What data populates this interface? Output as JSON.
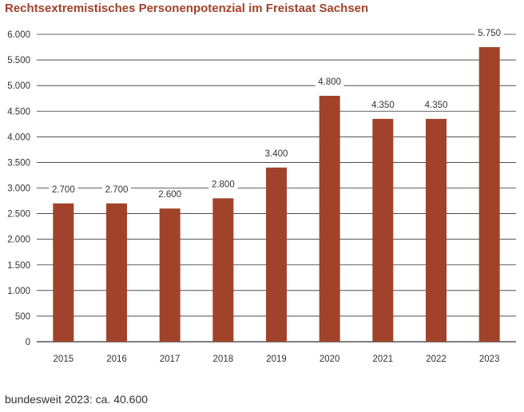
{
  "chart_data": {
    "type": "bar",
    "title": "Rechtsextremistisches Personenpotenzial im Freistaat Sachsen",
    "categories": [
      "2015",
      "2016",
      "2017",
      "2018",
      "2019",
      "2020",
      "2021",
      "2022",
      "2023"
    ],
    "values": [
      2700,
      2700,
      2600,
      2800,
      3400,
      4800,
      4350,
      4350,
      5750
    ],
    "value_labels": [
      "2.700",
      "2.700",
      "2.600",
      "2.800",
      "3.400",
      "4.800",
      "4.350",
      "4.350",
      "5.750"
    ],
    "ylim": [
      0,
      6000
    ],
    "yticks": [
      0,
      500,
      1000,
      1500,
      2000,
      2500,
      3000,
      3500,
      4000,
      4500,
      5000,
      5500,
      6000
    ],
    "ytick_labels": [
      "0",
      "500",
      "1.000",
      "1.500",
      "2.000",
      "2.500",
      "3.000",
      "3.500",
      "4.000",
      "4.500",
      "5.000",
      "5.500",
      "6.000"
    ],
    "xlabel": "",
    "ylabel": "",
    "grid": true,
    "bar_color": "#a0432a",
    "title_color": "#a0432a",
    "grid_color": "#333333"
  },
  "footnote": "bundesweit 2023: ca. 40.600"
}
